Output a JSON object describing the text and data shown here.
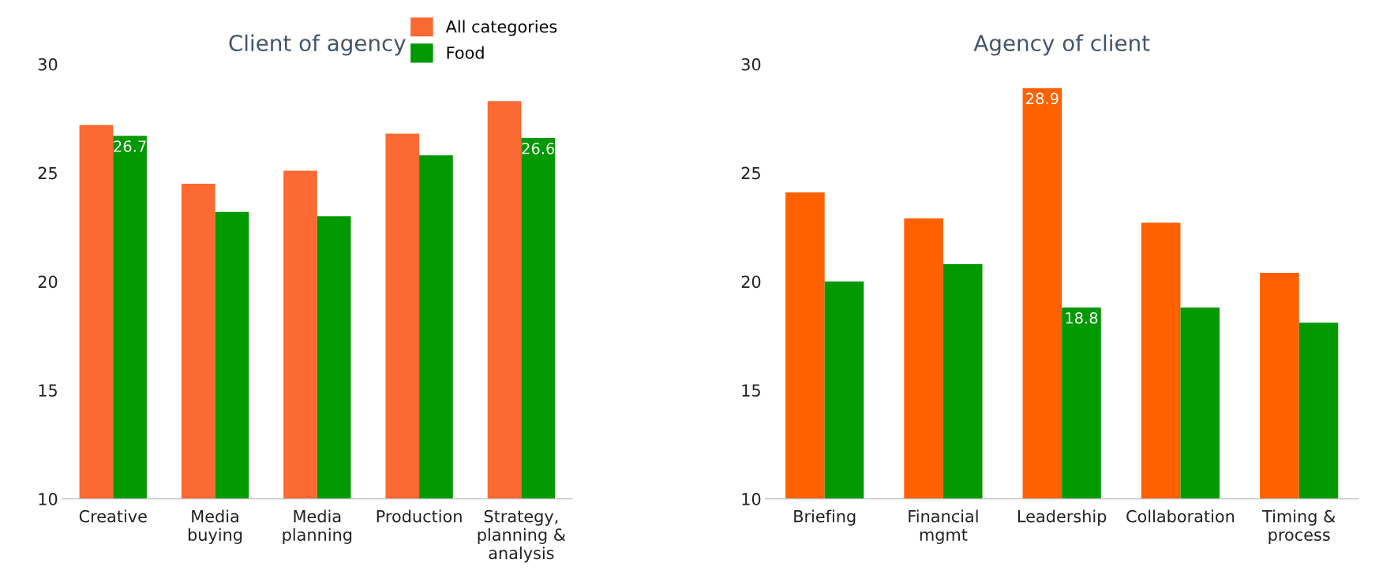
{
  "chart_data": [
    {
      "type": "bar",
      "title": "Client of agency",
      "categories": [
        "Creative",
        "Media\nbuying",
        "Media\nplanning",
        "Production",
        "Strategy,\nplanning &\nanalysis"
      ],
      "ylim": [
        10,
        30
      ],
      "yticks": [
        10,
        15,
        20,
        25,
        30
      ],
      "grid": false,
      "legend": "top right",
      "series": [
        {
          "name": "All categories",
          "color": "#fa6a32",
          "values": [
            27.2,
            24.5,
            25.1,
            26.8,
            28.3
          ],
          "value_labels": [
            null,
            null,
            null,
            null,
            null
          ]
        },
        {
          "name": "Food",
          "color": "#009900",
          "values": [
            26.7,
            23.2,
            23.0,
            25.8,
            26.6
          ],
          "value_labels": [
            "26.7",
            null,
            null,
            null,
            "26.6"
          ]
        }
      ]
    },
    {
      "type": "bar",
      "title": "Agency of client",
      "categories": [
        "Briefing",
        "Financial\nmgmt",
        "Leadership",
        "Collaboration",
        "Timing &\nprocess"
      ],
      "ylim": [
        10,
        30
      ],
      "yticks": [
        10,
        15,
        20,
        25,
        30
      ],
      "grid": false,
      "series": [
        {
          "color": "#ff6000",
          "values": [
            24.1,
            22.9,
            28.9,
            22.7,
            20.4
          ],
          "value_labels": [
            null,
            null,
            "28.9",
            null,
            null
          ]
        },
        {
          "color": "#009900",
          "values": [
            20.0,
            20.8,
            18.8,
            18.8,
            18.1
          ],
          "value_labels": [
            null,
            null,
            "18.8",
            null,
            null
          ]
        }
      ]
    }
  ]
}
